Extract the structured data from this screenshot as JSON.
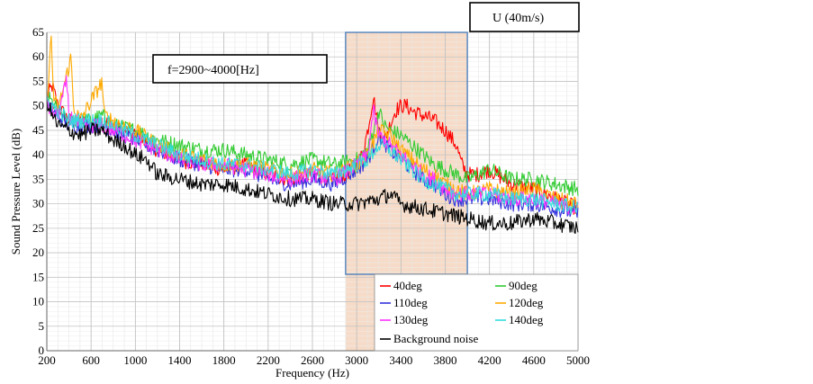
{
  "chart_data": {
    "type": "line",
    "title": "",
    "xlabel": "Frequency (Hz)",
    "ylabel": "Sound Pressure Level (dB)",
    "xlim": [
      200,
      5000
    ],
    "ylim": [
      0,
      65
    ],
    "x_ticks": [
      200,
      600,
      1000,
      1400,
      1800,
      2200,
      2600,
      3000,
      3400,
      3800,
      4200,
      4600,
      5000
    ],
    "y_ticks": [
      0,
      5,
      10,
      15,
      20,
      25,
      30,
      35,
      40,
      45,
      50,
      55,
      60,
      65
    ],
    "grid": true,
    "legend_position": "bottom-right",
    "highlight_band": {
      "x0": 2900,
      "x1": 4000,
      "color": "#f6dcc8",
      "border": "#4f81bd"
    },
    "annotations": [
      {
        "id": "freq_range",
        "text": "f=2900~4000[Hz]"
      },
      {
        "id": "velocity",
        "text": "U (40m/s)"
      }
    ],
    "series": [
      {
        "name": "40deg",
        "color": "#ff0000",
        "points": [
          [
            200,
            52
          ],
          [
            250,
            54
          ],
          [
            300,
            50
          ],
          [
            400,
            47
          ],
          [
            500,
            47
          ],
          [
            600,
            46
          ],
          [
            700,
            47
          ],
          [
            800,
            46
          ],
          [
            1000,
            44
          ],
          [
            1200,
            41
          ],
          [
            1400,
            39
          ],
          [
            1600,
            38
          ],
          [
            1800,
            37
          ],
          [
            2000,
            38
          ],
          [
            2200,
            36
          ],
          [
            2400,
            35
          ],
          [
            2600,
            36
          ],
          [
            2800,
            35
          ],
          [
            2900,
            36
          ],
          [
            3000,
            38
          ],
          [
            3050,
            40
          ],
          [
            3100,
            45
          ],
          [
            3150,
            52
          ],
          [
            3200,
            45
          ],
          [
            3250,
            43
          ],
          [
            3300,
            46
          ],
          [
            3350,
            49
          ],
          [
            3400,
            50
          ],
          [
            3450,
            50
          ],
          [
            3500,
            49
          ],
          [
            3600,
            48
          ],
          [
            3700,
            47
          ],
          [
            3800,
            45
          ],
          [
            3900,
            42
          ],
          [
            3950,
            38
          ],
          [
            4000,
            36
          ],
          [
            4100,
            36
          ],
          [
            4200,
            37
          ],
          [
            4400,
            34
          ],
          [
            4600,
            33
          ],
          [
            4800,
            31
          ],
          [
            5000,
            29
          ]
        ]
      },
      {
        "name": "90deg",
        "color": "#33cc33",
        "points": [
          [
            200,
            52
          ],
          [
            300,
            49
          ],
          [
            400,
            47
          ],
          [
            500,
            47
          ],
          [
            600,
            47
          ],
          [
            700,
            48
          ],
          [
            800,
            46
          ],
          [
            1000,
            45
          ],
          [
            1200,
            43
          ],
          [
            1400,
            42
          ],
          [
            1600,
            41
          ],
          [
            1800,
            41
          ],
          [
            2000,
            40
          ],
          [
            2200,
            39
          ],
          [
            2400,
            38
          ],
          [
            2600,
            39
          ],
          [
            2800,
            38
          ],
          [
            3000,
            39
          ],
          [
            3100,
            41
          ],
          [
            3200,
            49
          ],
          [
            3250,
            46
          ],
          [
            3300,
            45
          ],
          [
            3400,
            44
          ],
          [
            3500,
            42
          ],
          [
            3600,
            40
          ],
          [
            3700,
            38
          ],
          [
            3800,
            37
          ],
          [
            3900,
            36
          ],
          [
            4000,
            35
          ],
          [
            4100,
            36
          ],
          [
            4200,
            37
          ],
          [
            4400,
            35
          ],
          [
            4600,
            35
          ],
          [
            4800,
            34
          ],
          [
            5000,
            33
          ]
        ]
      },
      {
        "name": "110deg",
        "color": "#3333dd",
        "points": [
          [
            200,
            50
          ],
          [
            300,
            48
          ],
          [
            400,
            46
          ],
          [
            500,
            46
          ],
          [
            600,
            46
          ],
          [
            700,
            46
          ],
          [
            800,
            45
          ],
          [
            1000,
            43
          ],
          [
            1200,
            41
          ],
          [
            1400,
            39
          ],
          [
            1600,
            38
          ],
          [
            1800,
            37
          ],
          [
            2000,
            37
          ],
          [
            2200,
            35
          ],
          [
            2400,
            34
          ],
          [
            2600,
            35
          ],
          [
            2800,
            34
          ],
          [
            3000,
            37
          ],
          [
            3100,
            39
          ],
          [
            3200,
            44
          ],
          [
            3300,
            41
          ],
          [
            3400,
            39
          ],
          [
            3500,
            37
          ],
          [
            3600,
            35
          ],
          [
            3700,
            34
          ],
          [
            3800,
            32
          ],
          [
            3900,
            31
          ],
          [
            4000,
            31
          ],
          [
            4200,
            31
          ],
          [
            4400,
            30
          ],
          [
            4600,
            30
          ],
          [
            4800,
            29
          ],
          [
            5000,
            28
          ]
        ]
      },
      {
        "name": "120deg",
        "color": "#ffaa00",
        "points": [
          [
            200,
            51
          ],
          [
            240,
            64
          ],
          [
            260,
            52
          ],
          [
            300,
            49
          ],
          [
            420,
            60
          ],
          [
            440,
            50
          ],
          [
            500,
            47
          ],
          [
            700,
            55
          ],
          [
            720,
            48
          ],
          [
            800,
            47
          ],
          [
            1000,
            45
          ],
          [
            1200,
            42
          ],
          [
            1400,
            40
          ],
          [
            1600,
            39
          ],
          [
            1800,
            38
          ],
          [
            2000,
            38
          ],
          [
            2200,
            37
          ],
          [
            2400,
            36
          ],
          [
            2600,
            37
          ],
          [
            2800,
            36
          ],
          [
            3000,
            38
          ],
          [
            3100,
            40
          ],
          [
            3200,
            45
          ],
          [
            3300,
            44
          ],
          [
            3400,
            41
          ],
          [
            3500,
            39
          ],
          [
            3600,
            37
          ],
          [
            3700,
            36
          ],
          [
            3800,
            34
          ],
          [
            3900,
            33
          ],
          [
            4000,
            32
          ],
          [
            4200,
            33
          ],
          [
            4400,
            32
          ],
          [
            4600,
            33
          ],
          [
            4800,
            31
          ],
          [
            5000,
            30
          ]
        ]
      },
      {
        "name": "130deg",
        "color": "#ff33ff",
        "points": [
          [
            200,
            50
          ],
          [
            300,
            48
          ],
          [
            380,
            55
          ],
          [
            400,
            48
          ],
          [
            500,
            46
          ],
          [
            600,
            46
          ],
          [
            700,
            46
          ],
          [
            800,
            45
          ],
          [
            1000,
            43
          ],
          [
            1200,
            41
          ],
          [
            1400,
            39
          ],
          [
            1600,
            38
          ],
          [
            1800,
            38
          ],
          [
            2000,
            37
          ],
          [
            2200,
            36
          ],
          [
            2400,
            35
          ],
          [
            2600,
            36
          ],
          [
            2800,
            35
          ],
          [
            3000,
            38
          ],
          [
            3100,
            40
          ],
          [
            3150,
            49
          ],
          [
            3200,
            44
          ],
          [
            3300,
            42
          ],
          [
            3400,
            40
          ],
          [
            3500,
            38
          ],
          [
            3600,
            36
          ],
          [
            3700,
            35
          ],
          [
            3800,
            33
          ],
          [
            3900,
            32
          ],
          [
            4000,
            32
          ],
          [
            4200,
            32
          ],
          [
            4400,
            31
          ],
          [
            4600,
            31
          ],
          [
            4800,
            30
          ],
          [
            5000,
            29
          ]
        ]
      },
      {
        "name": "140deg",
        "color": "#33dddd",
        "points": [
          [
            200,
            51
          ],
          [
            300,
            49
          ],
          [
            400,
            47
          ],
          [
            500,
            47
          ],
          [
            600,
            47
          ],
          [
            700,
            47
          ],
          [
            800,
            46
          ],
          [
            1000,
            44
          ],
          [
            1200,
            42
          ],
          [
            1400,
            40
          ],
          [
            1600,
            39
          ],
          [
            1800,
            38
          ],
          [
            2000,
            38
          ],
          [
            2200,
            37
          ],
          [
            2400,
            36
          ],
          [
            2600,
            37
          ],
          [
            2800,
            36
          ],
          [
            3000,
            38
          ],
          [
            3100,
            39
          ],
          [
            3200,
            42
          ],
          [
            3300,
            41
          ],
          [
            3400,
            39
          ],
          [
            3500,
            37
          ],
          [
            3600,
            35
          ],
          [
            3700,
            34
          ],
          [
            3800,
            33
          ],
          [
            3900,
            32
          ],
          [
            4000,
            32
          ],
          [
            4200,
            32
          ],
          [
            4400,
            31
          ],
          [
            4600,
            31
          ],
          [
            4800,
            30
          ],
          [
            5000,
            29
          ]
        ]
      },
      {
        "name": "Background noise",
        "color": "#000000",
        "points": [
          [
            200,
            51
          ],
          [
            250,
            48
          ],
          [
            300,
            46
          ],
          [
            400,
            45
          ],
          [
            500,
            44
          ],
          [
            600,
            45
          ],
          [
            700,
            45
          ],
          [
            800,
            43
          ],
          [
            900,
            42
          ],
          [
            1000,
            40
          ],
          [
            1100,
            39
          ],
          [
            1200,
            36
          ],
          [
            1400,
            35
          ],
          [
            1600,
            34
          ],
          [
            1800,
            34
          ],
          [
            2000,
            33
          ],
          [
            2200,
            32
          ],
          [
            2400,
            31
          ],
          [
            2600,
            31
          ],
          [
            2800,
            30
          ],
          [
            3000,
            30
          ],
          [
            3200,
            31
          ],
          [
            3300,
            32
          ],
          [
            3400,
            30
          ],
          [
            3600,
            29
          ],
          [
            3800,
            28
          ],
          [
            4000,
            27
          ],
          [
            4200,
            26
          ],
          [
            4400,
            26
          ],
          [
            4600,
            27
          ],
          [
            4800,
            26
          ],
          [
            5000,
            25
          ]
        ]
      }
    ]
  }
}
